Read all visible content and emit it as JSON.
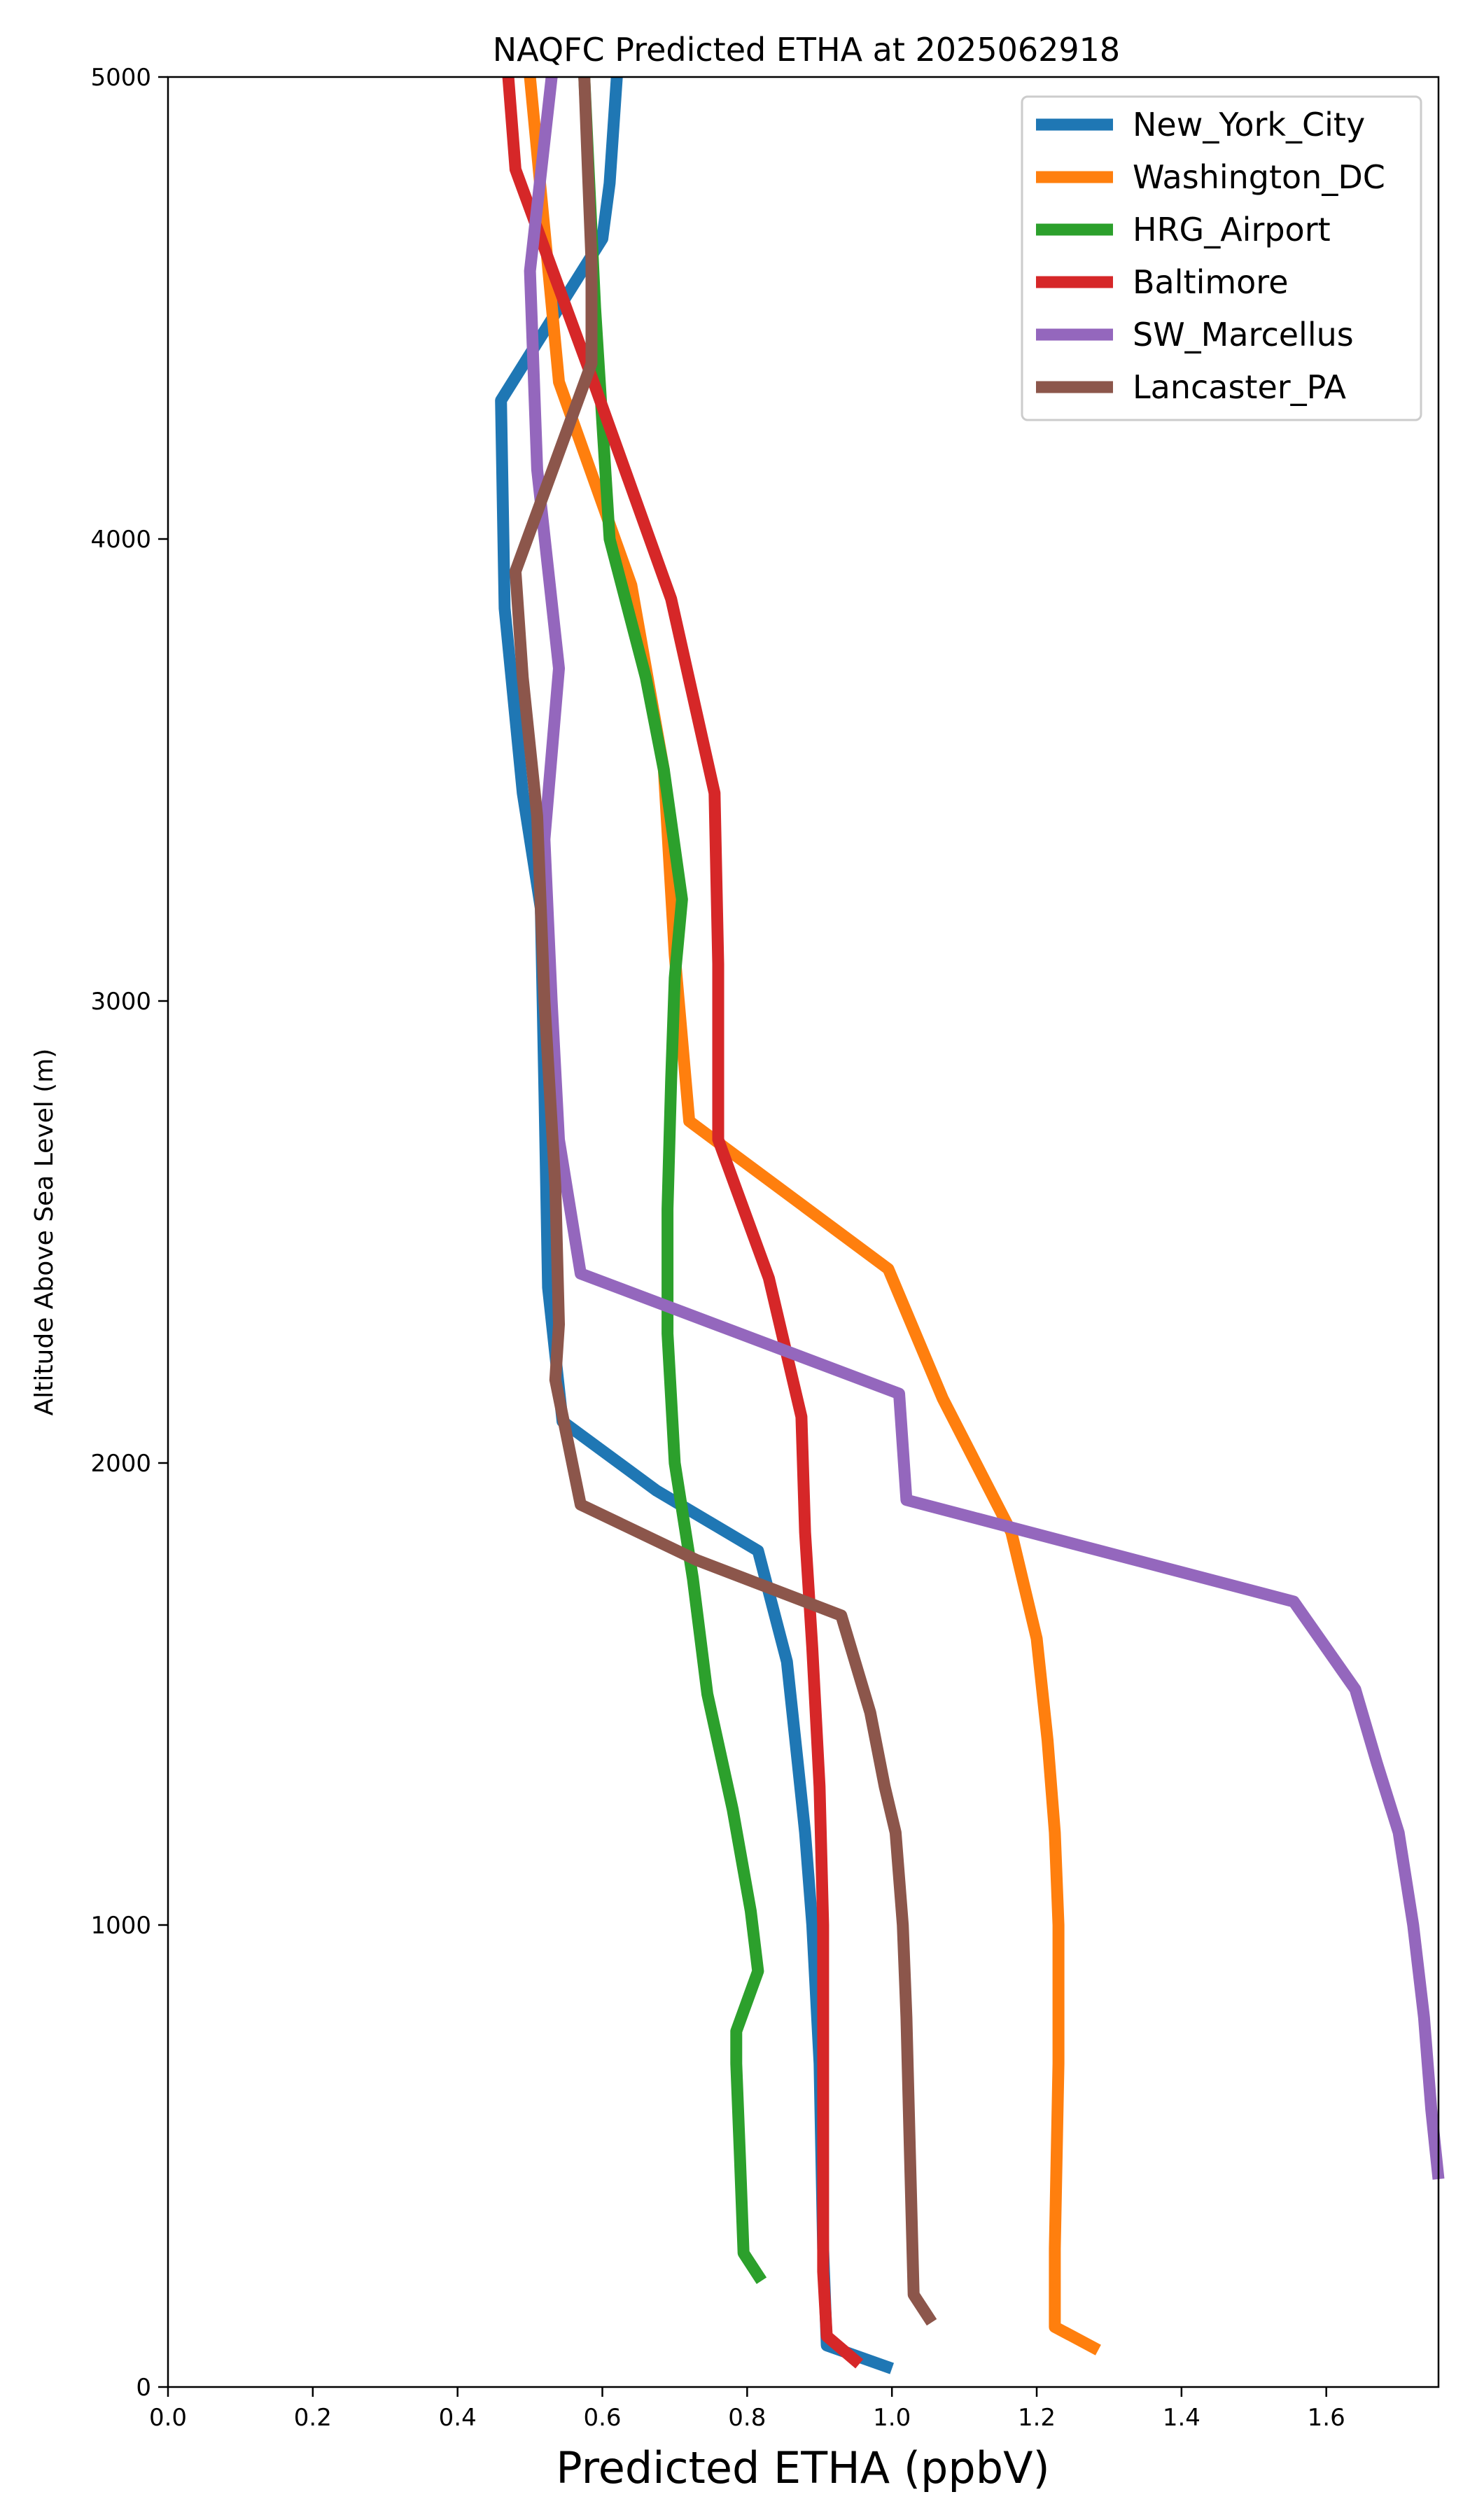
{
  "chart_data": {
    "type": "line",
    "title": "NAQFC Predicted ETHA at 2025062918",
    "xlabel": "Predicted ETHA (ppbV)",
    "ylabel": "Altitude Above Sea Level (m)",
    "xlim": [
      0,
      1.755
    ],
    "ylim": [
      0,
      5000
    ],
    "xticks": [
      0.0,
      0.2,
      0.4,
      0.6,
      0.8,
      1.0,
      1.2,
      1.4,
      1.6
    ],
    "xtick_labels": [
      "0.0",
      "0.2",
      "0.4",
      "0.6",
      "0.8",
      "1.0",
      "1.2",
      "1.4",
      "1.6"
    ],
    "yticks": [
      0,
      1000,
      2000,
      3000,
      4000,
      5000
    ],
    "ytick_labels": [
      "0",
      "1000",
      "2000",
      "3000",
      "4000",
      "5000"
    ],
    "grid": false,
    "legend_position": "top-right",
    "series": [
      {
        "name": "New_York_City",
        "color": "#1f77b4",
        "points": [
          [
            1.0,
            40
          ],
          [
            0.91,
            90
          ],
          [
            0.905,
            300
          ],
          [
            0.9,
            700
          ],
          [
            0.89,
            1000
          ],
          [
            0.88,
            1200
          ],
          [
            0.87,
            1350
          ],
          [
            0.855,
            1570
          ],
          [
            0.815,
            1810
          ],
          [
            0.675,
            1940
          ],
          [
            0.545,
            2090
          ],
          [
            0.525,
            2380
          ],
          [
            0.52,
            2800
          ],
          [
            0.515,
            3200
          ],
          [
            0.49,
            3450
          ],
          [
            0.465,
            3850
          ],
          [
            0.46,
            4300
          ],
          [
            0.6,
            4650
          ],
          [
            0.61,
            4770
          ],
          [
            0.62,
            5000
          ]
        ]
      },
      {
        "name": "Washington_DC",
        "color": "#ff7f0e",
        "points": [
          [
            1.285,
            80
          ],
          [
            1.225,
            130
          ],
          [
            1.225,
            300
          ],
          [
            1.23,
            700
          ],
          [
            1.23,
            1000
          ],
          [
            1.225,
            1200
          ],
          [
            1.215,
            1400
          ],
          [
            1.2,
            1620
          ],
          [
            1.165,
            1850
          ],
          [
            1.07,
            2140
          ],
          [
            0.995,
            2420
          ],
          [
            0.72,
            2740
          ],
          [
            0.7,
            3100
          ],
          [
            0.685,
            3500
          ],
          [
            0.64,
            3900
          ],
          [
            0.54,
            4340
          ],
          [
            0.5,
            5000
          ]
        ]
      },
      {
        "name": "HRG_Airport",
        "color": "#2ca02c",
        "points": [
          [
            0.82,
            230
          ],
          [
            0.795,
            290
          ],
          [
            0.79,
            500
          ],
          [
            0.785,
            700
          ],
          [
            0.785,
            770
          ],
          [
            0.815,
            900
          ],
          [
            0.805,
            1030
          ],
          [
            0.78,
            1250
          ],
          [
            0.745,
            1500
          ],
          [
            0.725,
            1750
          ],
          [
            0.7,
            2000
          ],
          [
            0.69,
            2280
          ],
          [
            0.69,
            2550
          ],
          [
            0.695,
            2830
          ],
          [
            0.7,
            3050
          ],
          [
            0.71,
            3220
          ],
          [
            0.685,
            3500
          ],
          [
            0.66,
            3700
          ],
          [
            0.61,
            4000
          ],
          [
            0.59,
            4500
          ],
          [
            0.575,
            5000
          ]
        ]
      },
      {
        "name": "Baltimore",
        "color": "#d62728",
        "points": [
          [
            0.955,
            50
          ],
          [
            0.91,
            110
          ],
          [
            0.905,
            250
          ],
          [
            0.905,
            500
          ],
          [
            0.905,
            800
          ],
          [
            0.905,
            1000
          ],
          [
            0.9,
            1300
          ],
          [
            0.89,
            1600
          ],
          [
            0.88,
            1850
          ],
          [
            0.875,
            2100
          ],
          [
            0.83,
            2400
          ],
          [
            0.76,
            2700
          ],
          [
            0.76,
            3080
          ],
          [
            0.755,
            3450
          ],
          [
            0.695,
            3870
          ],
          [
            0.59,
            4330
          ],
          [
            0.48,
            4800
          ],
          [
            0.47,
            5000
          ]
        ]
      },
      {
        "name": "SW_Marcellus",
        "color": "#9467bd",
        "points": [
          [
            1.755,
            450
          ],
          [
            1.745,
            600
          ],
          [
            1.735,
            800
          ],
          [
            1.72,
            1000
          ],
          [
            1.7,
            1200
          ],
          [
            1.67,
            1350
          ],
          [
            1.64,
            1510
          ],
          [
            1.555,
            1700
          ],
          [
            1.02,
            1920
          ],
          [
            1.01,
            2150
          ],
          [
            0.57,
            2410
          ],
          [
            0.54,
            2700
          ],
          [
            0.53,
            3000
          ],
          [
            0.52,
            3350
          ],
          [
            0.54,
            3720
          ],
          [
            0.51,
            4150
          ],
          [
            0.5,
            4580
          ],
          [
            0.53,
            5000
          ]
        ]
      },
      {
        "name": "Lancaster_PA",
        "color": "#8c564b",
        "points": [
          [
            1.055,
            140
          ],
          [
            1.03,
            200
          ],
          [
            1.025,
            500
          ],
          [
            1.02,
            800
          ],
          [
            1.015,
            1000
          ],
          [
            1.005,
            1200
          ],
          [
            0.99,
            1300
          ],
          [
            0.97,
            1460
          ],
          [
            0.93,
            1670
          ],
          [
            0.73,
            1790
          ],
          [
            0.57,
            1910
          ],
          [
            0.535,
            2180
          ],
          [
            0.54,
            2300
          ],
          [
            0.535,
            2600
          ],
          [
            0.52,
            3000
          ],
          [
            0.51,
            3400
          ],
          [
            0.49,
            3700
          ],
          [
            0.48,
            3930
          ],
          [
            0.585,
            4380
          ],
          [
            0.585,
            4600
          ],
          [
            0.58,
            4800
          ],
          [
            0.575,
            5000
          ]
        ]
      }
    ]
  }
}
